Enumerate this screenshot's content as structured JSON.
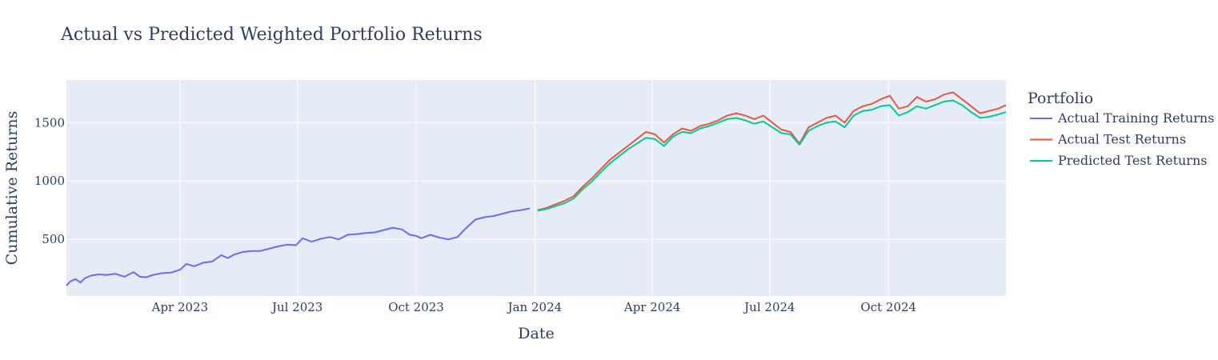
{
  "chart_data": {
    "type": "line",
    "title": "Actual vs Predicted Weighted Portfolio Returns",
    "xlabel": "Date",
    "ylabel": "Cumulative Returns",
    "x_tick_labels": [
      "Apr 2023",
      "Jul 2023",
      "Oct 2023",
      "Jan 2024",
      "Apr 2024",
      "Jul 2024",
      "Oct 2024"
    ],
    "x_tick_dates": [
      "2023-04-01",
      "2023-07-01",
      "2023-10-01",
      "2024-01-01",
      "2024-04-01",
      "2024-07-01",
      "2024-10-01"
    ],
    "y_tick_values": [
      500,
      1000,
      1500
    ],
    "y_tick_labels": [
      "500",
      "1000",
      "1500"
    ],
    "xlim": [
      "2023-01-03",
      "2024-12-31"
    ],
    "ylim": [
      15,
      1865
    ],
    "grid": true,
    "legend_title": "Portfolio",
    "legend_position": "right",
    "series": [
      {
        "name": "Actual Training Returns",
        "color": "#636efa",
        "x": [
          "2023-01-03",
          "2023-01-06",
          "2023-01-10",
          "2023-01-14",
          "2023-01-17",
          "2023-01-22",
          "2023-01-28",
          "2023-02-03",
          "2023-02-10",
          "2023-02-17",
          "2023-02-24",
          "2023-03-01",
          "2023-03-06",
          "2023-03-11",
          "2023-03-18",
          "2023-03-25",
          "2023-04-01",
          "2023-04-06",
          "2023-04-12",
          "2023-04-19",
          "2023-04-26",
          "2023-05-03",
          "2023-05-08",
          "2023-05-13",
          "2023-05-19",
          "2023-05-26",
          "2023-06-02",
          "2023-06-09",
          "2023-06-16",
          "2023-06-23",
          "2023-06-30",
          "2023-07-05",
          "2023-07-12",
          "2023-07-19",
          "2023-07-26",
          "2023-08-02",
          "2023-08-09",
          "2023-08-16",
          "2023-08-23",
          "2023-08-30",
          "2023-09-06",
          "2023-09-13",
          "2023-09-20",
          "2023-09-26",
          "2023-10-01",
          "2023-10-05",
          "2023-10-12",
          "2023-10-19",
          "2023-10-26",
          "2023-11-02",
          "2023-11-09",
          "2023-11-16",
          "2023-11-23",
          "2023-11-30",
          "2023-12-07",
          "2023-12-14",
          "2023-12-21",
          "2023-12-28"
        ],
        "y": [
          105,
          140,
          160,
          130,
          165,
          190,
          200,
          195,
          205,
          180,
          220,
          180,
          175,
          195,
          210,
          215,
          240,
          290,
          270,
          300,
          310,
          365,
          340,
          370,
          390,
          400,
          400,
          420,
          440,
          455,
          450,
          510,
          480,
          505,
          520,
          500,
          540,
          545,
          555,
          560,
          580,
          600,
          585,
          540,
          530,
          510,
          540,
          515,
          500,
          520,
          600,
          670,
          690,
          700,
          720,
          740,
          750,
          765
        ]
      },
      {
        "name": "Actual Test Returns",
        "color": "#ef553b",
        "x": [
          "2024-01-03",
          "2024-01-10",
          "2024-01-17",
          "2024-01-24",
          "2024-01-31",
          "2024-02-07",
          "2024-02-14",
          "2024-02-21",
          "2024-02-28",
          "2024-03-06",
          "2024-03-13",
          "2024-03-20",
          "2024-03-27",
          "2024-04-03",
          "2024-04-10",
          "2024-04-17",
          "2024-04-24",
          "2024-05-01",
          "2024-05-08",
          "2024-05-15",
          "2024-05-22",
          "2024-05-29",
          "2024-06-05",
          "2024-06-12",
          "2024-06-19",
          "2024-06-26",
          "2024-07-03",
          "2024-07-10",
          "2024-07-17",
          "2024-07-24",
          "2024-07-31",
          "2024-08-07",
          "2024-08-14",
          "2024-08-21",
          "2024-08-28",
          "2024-09-04",
          "2024-09-11",
          "2024-09-18",
          "2024-09-25",
          "2024-10-02",
          "2024-10-09",
          "2024-10-16",
          "2024-10-23",
          "2024-10-30",
          "2024-11-06",
          "2024-11-13",
          "2024-11-20",
          "2024-11-27",
          "2024-12-04",
          "2024-12-11",
          "2024-12-18",
          "2024-12-25",
          "2024-12-31"
        ],
        "y": [
          750,
          770,
          800,
          830,
          870,
          950,
          1020,
          1100,
          1180,
          1240,
          1300,
          1360,
          1420,
          1400,
          1330,
          1400,
          1450,
          1430,
          1470,
          1490,
          1520,
          1560,
          1580,
          1560,
          1530,
          1560,
          1500,
          1440,
          1420,
          1320,
          1460,
          1500,
          1540,
          1560,
          1500,
          1600,
          1640,
          1660,
          1700,
          1730,
          1620,
          1640,
          1720,
          1680,
          1700,
          1740,
          1760,
          1700,
          1640,
          1580,
          1600,
          1620,
          1650
        ]
      },
      {
        "name": "Predicted Test Returns",
        "color": "#00cc96",
        "x": [
          "2024-01-03",
          "2024-01-10",
          "2024-01-17",
          "2024-01-24",
          "2024-01-31",
          "2024-02-07",
          "2024-02-14",
          "2024-02-21",
          "2024-02-28",
          "2024-03-06",
          "2024-03-13",
          "2024-03-20",
          "2024-03-27",
          "2024-04-03",
          "2024-04-10",
          "2024-04-17",
          "2024-04-24",
          "2024-05-01",
          "2024-05-08",
          "2024-05-15",
          "2024-05-22",
          "2024-05-29",
          "2024-06-05",
          "2024-06-12",
          "2024-06-19",
          "2024-06-26",
          "2024-07-03",
          "2024-07-10",
          "2024-07-17",
          "2024-07-24",
          "2024-07-31",
          "2024-08-07",
          "2024-08-14",
          "2024-08-21",
          "2024-08-28",
          "2024-09-04",
          "2024-09-11",
          "2024-09-18",
          "2024-09-25",
          "2024-10-02",
          "2024-10-09",
          "2024-10-16",
          "2024-10-23",
          "2024-10-30",
          "2024-11-06",
          "2024-11-13",
          "2024-11-20",
          "2024-11-27",
          "2024-12-04",
          "2024-12-11",
          "2024-12-18",
          "2024-12-25",
          "2024-12-31"
        ],
        "y": [
          745,
          760,
          785,
          810,
          850,
          930,
          995,
          1075,
          1150,
          1210,
          1270,
          1320,
          1370,
          1360,
          1300,
          1380,
          1420,
          1410,
          1450,
          1470,
          1500,
          1530,
          1540,
          1520,
          1490,
          1510,
          1460,
          1410,
          1400,
          1310,
          1430,
          1470,
          1500,
          1510,
          1460,
          1560,
          1600,
          1610,
          1640,
          1650,
          1560,
          1590,
          1640,
          1620,
          1650,
          1680,
          1690,
          1650,
          1590,
          1540,
          1550,
          1570,
          1590
        ]
      }
    ]
  }
}
